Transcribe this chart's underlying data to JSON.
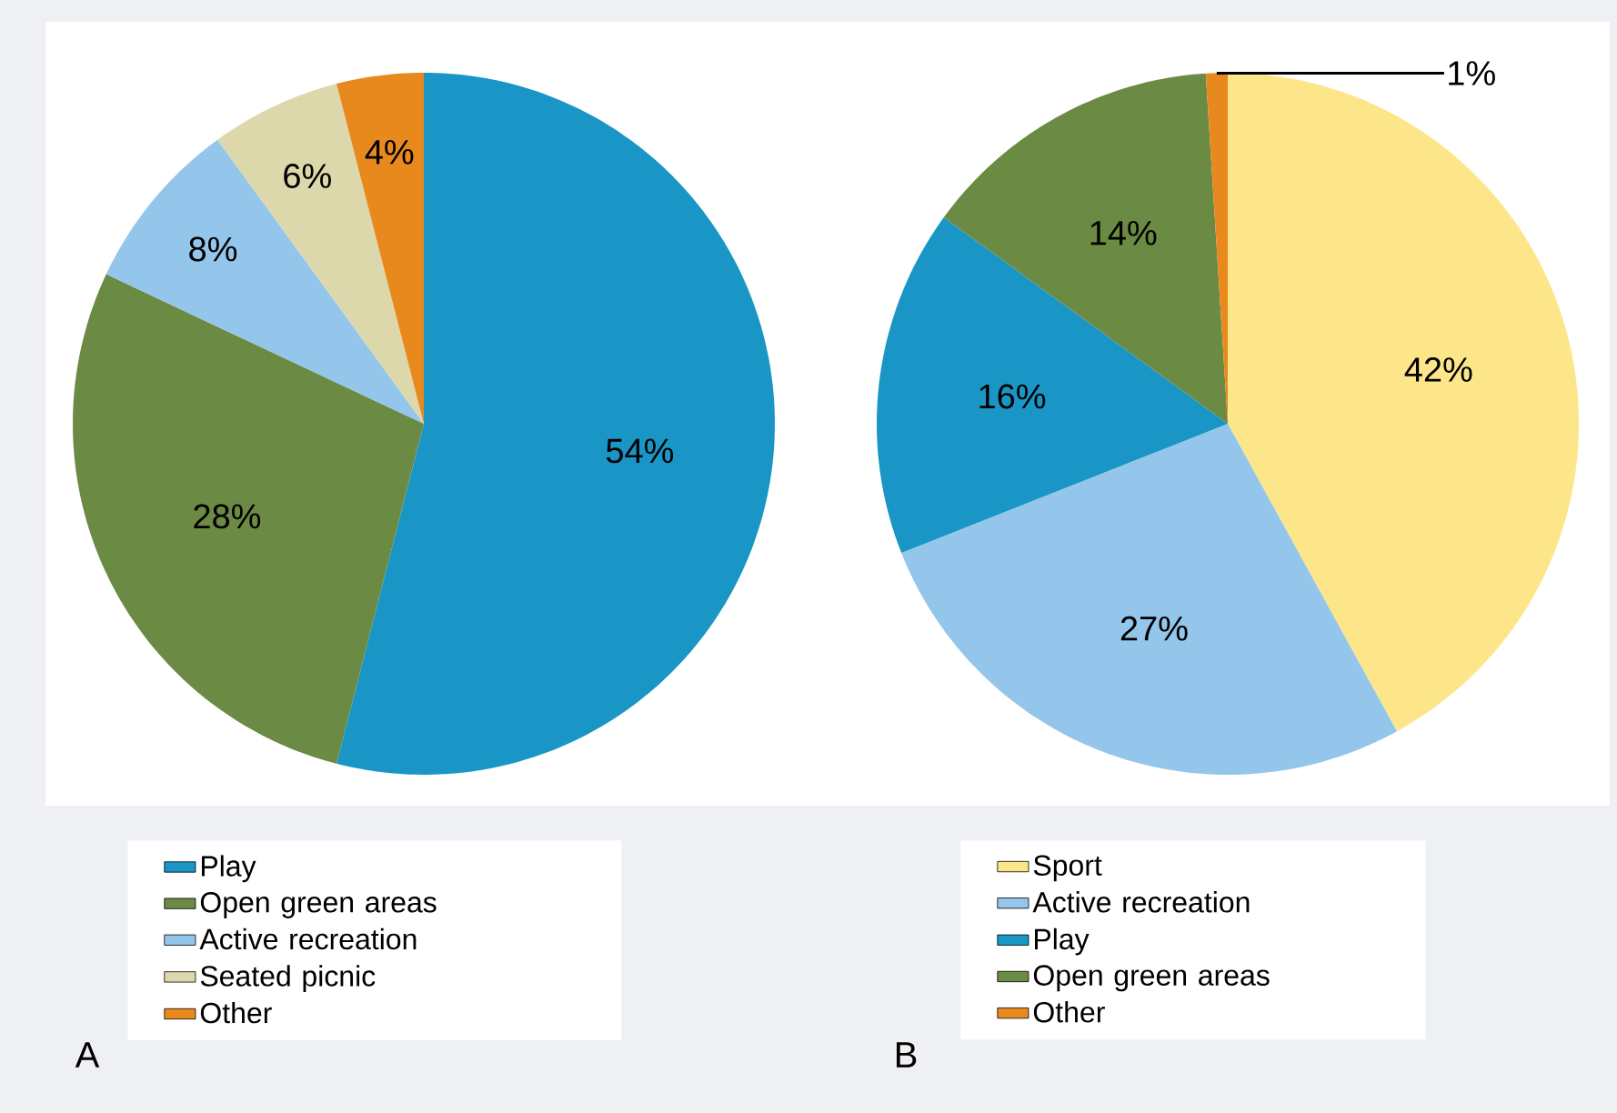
{
  "chart_data": [
    {
      "type": "pie",
      "categories": [
        "Play",
        "Open green areas",
        "Active recreation",
        "Seated picnic",
        "Other"
      ],
      "values": [
        54,
        28,
        8,
        6,
        4
      ],
      "value_labels": [
        "54%",
        "28%",
        "8%",
        "6%",
        "4%"
      ],
      "colors": [
        "#1a96c6",
        "#6b8a43",
        "#93c6ea",
        "#ddd8ac",
        "#e8891d"
      ],
      "legend": "bottom",
      "annotations": [
        "A"
      ]
    },
    {
      "type": "pie",
      "categories": [
        "Sport",
        "Active recreation",
        "Play",
        "Open green areas",
        "Other"
      ],
      "values": [
        42,
        27,
        16,
        14,
        1
      ],
      "value_labels": [
        "42%",
        "27%",
        "16%",
        "14%",
        "1%"
      ],
      "colors": [
        "#fde68a",
        "#93c6ea",
        "#1a96c6",
        "#6b8a43",
        "#e8891d"
      ],
      "legend": "bottom",
      "annotations": [
        "B"
      ]
    }
  ]
}
